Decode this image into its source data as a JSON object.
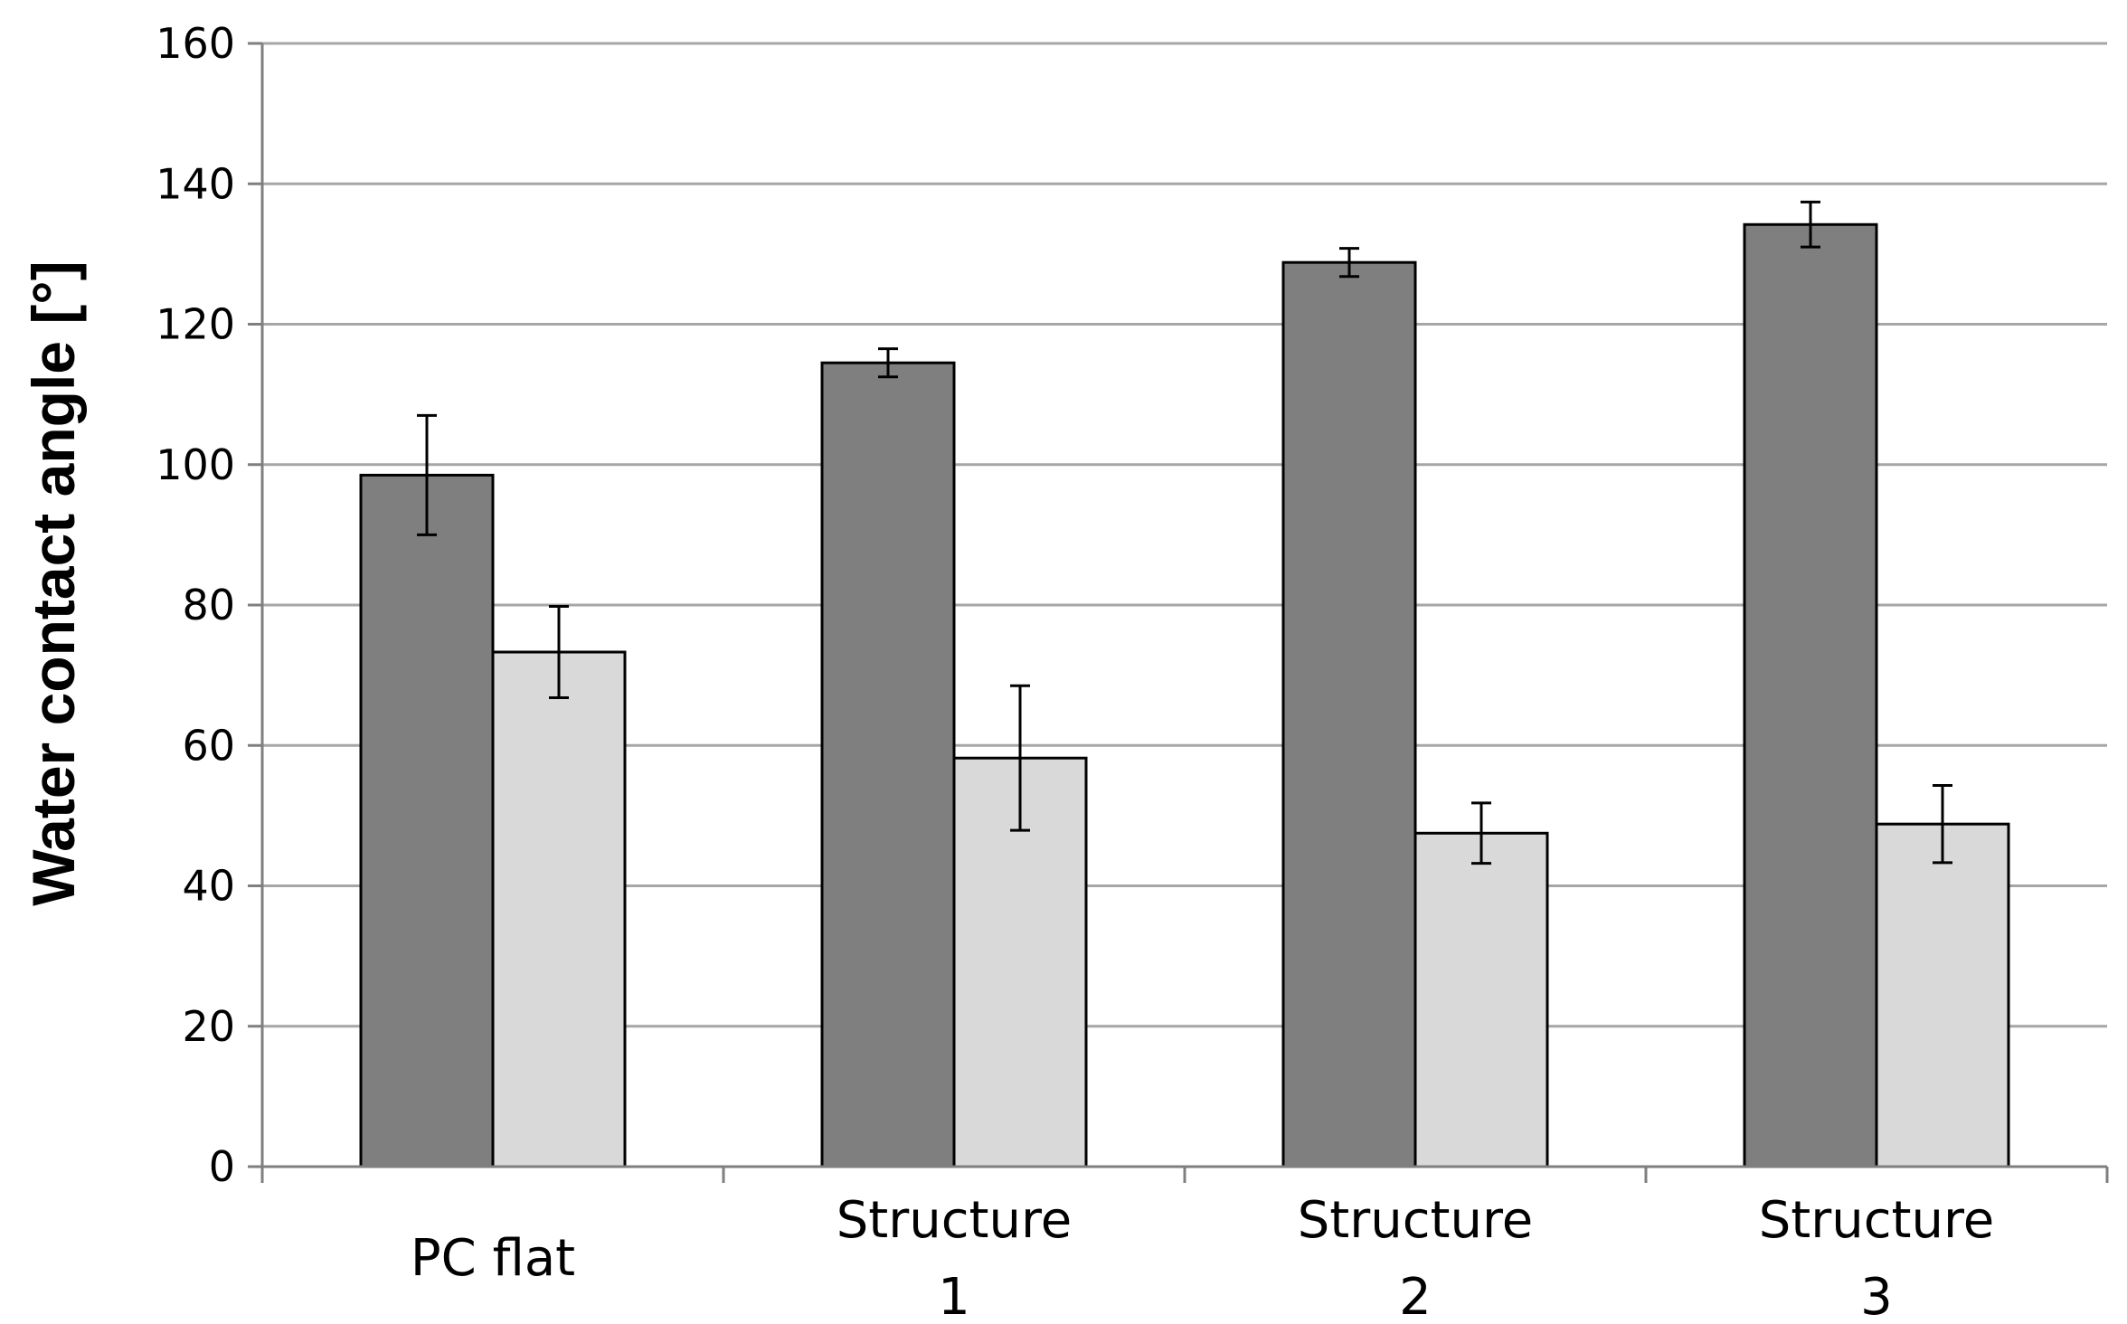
{
  "chart_data": {
    "type": "bar",
    "title": "",
    "xlabel": "",
    "ylabel": "Water contact angle [°]",
    "ylim": [
      0,
      160
    ],
    "yticks": [
      0,
      20,
      40,
      60,
      80,
      100,
      120,
      140,
      160
    ],
    "grid": true,
    "legend": "none",
    "categories": [
      [
        "PC flat"
      ],
      [
        "Structure",
        "1"
      ],
      [
        "Structure",
        "2"
      ],
      [
        "Structure",
        "3"
      ]
    ],
    "series": [
      {
        "color": "#7f7f7f",
        "values": [
          98.5,
          114.5,
          128.8,
          134.2
        ],
        "errors": [
          8.5,
          2.0,
          2.0,
          3.2
        ]
      },
      {
        "color": "#d9d9d9",
        "values": [
          73.3,
          58.2,
          47.5,
          48.8
        ],
        "errors": [
          6.5,
          10.3,
          4.3,
          5.5
        ]
      }
    ]
  }
}
